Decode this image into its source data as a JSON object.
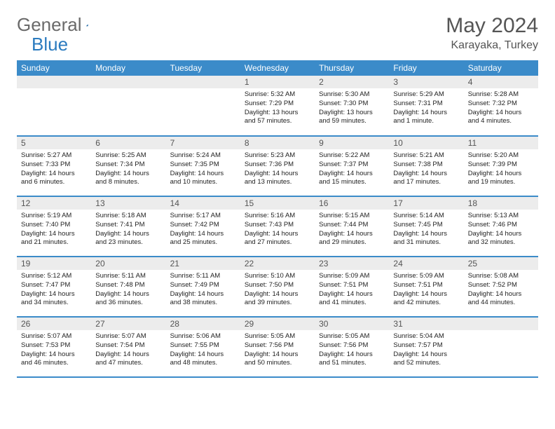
{
  "logo": {
    "text1": "General",
    "text2": "Blue"
  },
  "title": "May 2024",
  "location": "Karayaka, Turkey",
  "colors": {
    "header_bg": "#3b8bc9",
    "header_text": "#ffffff",
    "daynum_bg": "#ececec",
    "border": "#3b8bc9",
    "logo_gray": "#6a6a6a",
    "logo_blue": "#2b7bbf"
  },
  "dow": [
    "Sunday",
    "Monday",
    "Tuesday",
    "Wednesday",
    "Thursday",
    "Friday",
    "Saturday"
  ],
  "weeks": [
    [
      {
        "n": "",
        "sr": "",
        "ss": "",
        "dl": ""
      },
      {
        "n": "",
        "sr": "",
        "ss": "",
        "dl": ""
      },
      {
        "n": "",
        "sr": "",
        "ss": "",
        "dl": ""
      },
      {
        "n": "1",
        "sr": "Sunrise: 5:32 AM",
        "ss": "Sunset: 7:29 PM",
        "dl": "Daylight: 13 hours and 57 minutes."
      },
      {
        "n": "2",
        "sr": "Sunrise: 5:30 AM",
        "ss": "Sunset: 7:30 PM",
        "dl": "Daylight: 13 hours and 59 minutes."
      },
      {
        "n": "3",
        "sr": "Sunrise: 5:29 AM",
        "ss": "Sunset: 7:31 PM",
        "dl": "Daylight: 14 hours and 1 minute."
      },
      {
        "n": "4",
        "sr": "Sunrise: 5:28 AM",
        "ss": "Sunset: 7:32 PM",
        "dl": "Daylight: 14 hours and 4 minutes."
      }
    ],
    [
      {
        "n": "5",
        "sr": "Sunrise: 5:27 AM",
        "ss": "Sunset: 7:33 PM",
        "dl": "Daylight: 14 hours and 6 minutes."
      },
      {
        "n": "6",
        "sr": "Sunrise: 5:25 AM",
        "ss": "Sunset: 7:34 PM",
        "dl": "Daylight: 14 hours and 8 minutes."
      },
      {
        "n": "7",
        "sr": "Sunrise: 5:24 AM",
        "ss": "Sunset: 7:35 PM",
        "dl": "Daylight: 14 hours and 10 minutes."
      },
      {
        "n": "8",
        "sr": "Sunrise: 5:23 AM",
        "ss": "Sunset: 7:36 PM",
        "dl": "Daylight: 14 hours and 13 minutes."
      },
      {
        "n": "9",
        "sr": "Sunrise: 5:22 AM",
        "ss": "Sunset: 7:37 PM",
        "dl": "Daylight: 14 hours and 15 minutes."
      },
      {
        "n": "10",
        "sr": "Sunrise: 5:21 AM",
        "ss": "Sunset: 7:38 PM",
        "dl": "Daylight: 14 hours and 17 minutes."
      },
      {
        "n": "11",
        "sr": "Sunrise: 5:20 AM",
        "ss": "Sunset: 7:39 PM",
        "dl": "Daylight: 14 hours and 19 minutes."
      }
    ],
    [
      {
        "n": "12",
        "sr": "Sunrise: 5:19 AM",
        "ss": "Sunset: 7:40 PM",
        "dl": "Daylight: 14 hours and 21 minutes."
      },
      {
        "n": "13",
        "sr": "Sunrise: 5:18 AM",
        "ss": "Sunset: 7:41 PM",
        "dl": "Daylight: 14 hours and 23 minutes."
      },
      {
        "n": "14",
        "sr": "Sunrise: 5:17 AM",
        "ss": "Sunset: 7:42 PM",
        "dl": "Daylight: 14 hours and 25 minutes."
      },
      {
        "n": "15",
        "sr": "Sunrise: 5:16 AM",
        "ss": "Sunset: 7:43 PM",
        "dl": "Daylight: 14 hours and 27 minutes."
      },
      {
        "n": "16",
        "sr": "Sunrise: 5:15 AM",
        "ss": "Sunset: 7:44 PM",
        "dl": "Daylight: 14 hours and 29 minutes."
      },
      {
        "n": "17",
        "sr": "Sunrise: 5:14 AM",
        "ss": "Sunset: 7:45 PM",
        "dl": "Daylight: 14 hours and 31 minutes."
      },
      {
        "n": "18",
        "sr": "Sunrise: 5:13 AM",
        "ss": "Sunset: 7:46 PM",
        "dl": "Daylight: 14 hours and 32 minutes."
      }
    ],
    [
      {
        "n": "19",
        "sr": "Sunrise: 5:12 AM",
        "ss": "Sunset: 7:47 PM",
        "dl": "Daylight: 14 hours and 34 minutes."
      },
      {
        "n": "20",
        "sr": "Sunrise: 5:11 AM",
        "ss": "Sunset: 7:48 PM",
        "dl": "Daylight: 14 hours and 36 minutes."
      },
      {
        "n": "21",
        "sr": "Sunrise: 5:11 AM",
        "ss": "Sunset: 7:49 PM",
        "dl": "Daylight: 14 hours and 38 minutes."
      },
      {
        "n": "22",
        "sr": "Sunrise: 5:10 AM",
        "ss": "Sunset: 7:50 PM",
        "dl": "Daylight: 14 hours and 39 minutes."
      },
      {
        "n": "23",
        "sr": "Sunrise: 5:09 AM",
        "ss": "Sunset: 7:51 PM",
        "dl": "Daylight: 14 hours and 41 minutes."
      },
      {
        "n": "24",
        "sr": "Sunrise: 5:09 AM",
        "ss": "Sunset: 7:51 PM",
        "dl": "Daylight: 14 hours and 42 minutes."
      },
      {
        "n": "25",
        "sr": "Sunrise: 5:08 AM",
        "ss": "Sunset: 7:52 PM",
        "dl": "Daylight: 14 hours and 44 minutes."
      }
    ],
    [
      {
        "n": "26",
        "sr": "Sunrise: 5:07 AM",
        "ss": "Sunset: 7:53 PM",
        "dl": "Daylight: 14 hours and 46 minutes."
      },
      {
        "n": "27",
        "sr": "Sunrise: 5:07 AM",
        "ss": "Sunset: 7:54 PM",
        "dl": "Daylight: 14 hours and 47 minutes."
      },
      {
        "n": "28",
        "sr": "Sunrise: 5:06 AM",
        "ss": "Sunset: 7:55 PM",
        "dl": "Daylight: 14 hours and 48 minutes."
      },
      {
        "n": "29",
        "sr": "Sunrise: 5:05 AM",
        "ss": "Sunset: 7:56 PM",
        "dl": "Daylight: 14 hours and 50 minutes."
      },
      {
        "n": "30",
        "sr": "Sunrise: 5:05 AM",
        "ss": "Sunset: 7:56 PM",
        "dl": "Daylight: 14 hours and 51 minutes."
      },
      {
        "n": "31",
        "sr": "Sunrise: 5:04 AM",
        "ss": "Sunset: 7:57 PM",
        "dl": "Daylight: 14 hours and 52 minutes."
      },
      {
        "n": "",
        "sr": "",
        "ss": "",
        "dl": ""
      }
    ]
  ]
}
